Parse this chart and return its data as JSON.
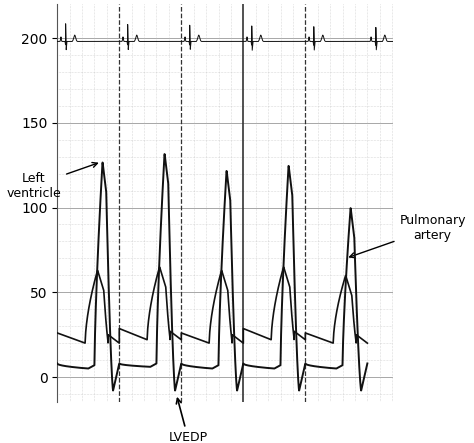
{
  "title": "",
  "ylabel": "",
  "xlabel": "",
  "ylim": [
    -15,
    220
  ],
  "yticks": [
    0,
    50,
    100,
    150,
    200
  ],
  "xlim": [
    0,
    10.0
  ],
  "background_color": "#ffffff",
  "grid_major_color": "#999999",
  "grid_minor_color": "#bbbbbb",
  "line_color": "#111111",
  "label_lv": "Left\nventricle",
  "label_pa": "Pulmonary\nartery",
  "label_lvedp": "LVEDP",
  "ecg_baseline": 198,
  "figsize": [
    4.74,
    4.43
  ],
  "dpi": 100,
  "beat_period": 1.85,
  "n_beats": 5,
  "lv_peaks": [
    127,
    132,
    122,
    125,
    100
  ],
  "lv_edp": [
    5,
    6,
    5,
    5,
    5
  ],
  "pa_sys": [
    63,
    65,
    63,
    65,
    60
  ],
  "pa_dias": [
    20,
    22,
    20,
    22,
    20
  ],
  "major_vlines_x": [
    1.85,
    3.7,
    5.55,
    7.4
  ],
  "solid_vlines_x": [
    5.55
  ],
  "ecg_beat_times": [
    0.25,
    2.1,
    3.95,
    5.8,
    7.65,
    9.5
  ]
}
